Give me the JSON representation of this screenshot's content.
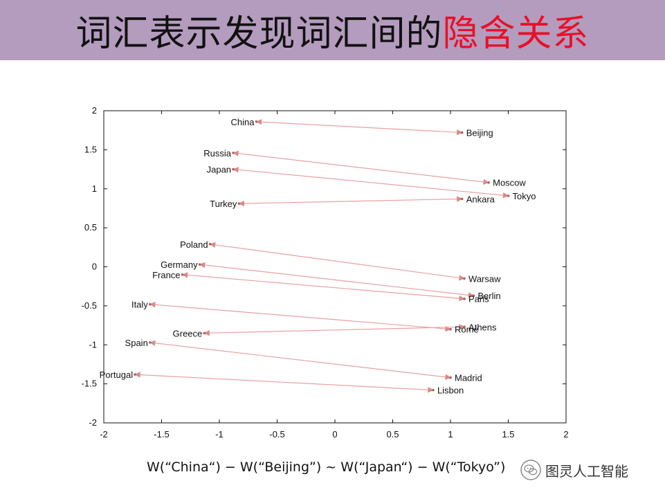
{
  "header": {
    "title_main": "词汇表示发现词汇间的",
    "title_accent": "隐含关系",
    "bar_color": "#b49cbe",
    "accent_color": "#e8102a"
  },
  "chart_data": {
    "type": "scatter",
    "xlim": [
      -2,
      2
    ],
    "ylim": [
      -2,
      2
    ],
    "x_ticks": [
      "-2",
      "-1.5",
      "-1",
      "-0.5",
      "0",
      "0.5",
      "1",
      "1.5",
      "2"
    ],
    "y_ticks": [
      "2",
      "1.5",
      "1",
      "0.5",
      "0",
      "-0.5",
      "-1",
      "-1.5",
      "-2"
    ],
    "grid": false,
    "arrow_color": "#e8a0a0",
    "points": [
      {
        "label": "China",
        "x": -0.68,
        "y": 1.86
      },
      {
        "label": "Beijing",
        "x": 1.1,
        "y": 1.72
      },
      {
        "label": "Russia",
        "x": -0.88,
        "y": 1.46
      },
      {
        "label": "Moscow",
        "x": 1.33,
        "y": 1.08
      },
      {
        "label": "Japan",
        "x": -0.88,
        "y": 1.25
      },
      {
        "label": "Tokyo",
        "x": 1.5,
        "y": 0.91
      },
      {
        "label": "Turkey",
        "x": -0.83,
        "y": 0.81
      },
      {
        "label": "Ankara",
        "x": 1.1,
        "y": 0.87
      },
      {
        "label": "Poland",
        "x": -1.08,
        "y": 0.29
      },
      {
        "label": "Warsaw",
        "x": 1.12,
        "y": -0.15
      },
      {
        "label": "Germany",
        "x": -1.17,
        "y": 0.03
      },
      {
        "label": "Berlin",
        "x": 1.2,
        "y": -0.37
      },
      {
        "label": "France",
        "x": -1.32,
        "y": -0.1
      },
      {
        "label": "Paris",
        "x": 1.12,
        "y": -0.41
      },
      {
        "label": "Italy",
        "x": -1.6,
        "y": -0.48
      },
      {
        "label": "Rome",
        "x": 1.0,
        "y": -0.8
      },
      {
        "label": "Greece",
        "x": -1.13,
        "y": -0.85
      },
      {
        "label": "Athens",
        "x": 1.12,
        "y": -0.77
      },
      {
        "label": "Spain",
        "x": -1.6,
        "y": -0.97
      },
      {
        "label": "Madrid",
        "x": 1.0,
        "y": -1.42
      },
      {
        "label": "Portugal",
        "x": -1.73,
        "y": -1.38
      },
      {
        "label": "Lisbon",
        "x": 0.85,
        "y": -1.58
      }
    ],
    "arrows": [
      {
        "from": "China",
        "to": "Beijing"
      },
      {
        "from": "Russia",
        "to": "Moscow"
      },
      {
        "from": "Japan",
        "to": "Tokyo"
      },
      {
        "from": "Turkey",
        "to": "Ankara"
      },
      {
        "from": "Poland",
        "to": "Warsaw"
      },
      {
        "from": "Germany",
        "to": "Berlin"
      },
      {
        "from": "France",
        "to": "Paris"
      },
      {
        "from": "Italy",
        "to": "Rome"
      },
      {
        "from": "Greece",
        "to": "Athens"
      },
      {
        "from": "Spain",
        "to": "Madrid"
      },
      {
        "from": "Portugal",
        "to": "Lisbon"
      }
    ]
  },
  "formula": "W(“China“) − W(“Beijing”) ~ W(“Japan“) − W(“Tokyo”)",
  "watermark": {
    "text": "图灵人工智能",
    "logo_icon": "wechat-icon"
  }
}
